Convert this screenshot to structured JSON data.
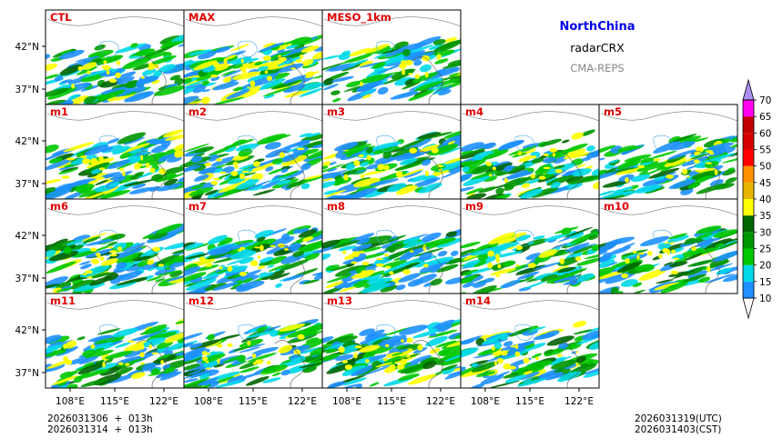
{
  "header": {
    "region": "NorthChina",
    "variable": "radarCRX",
    "system": "CMA-REPS"
  },
  "panels": [
    {
      "row": 0,
      "col": 0,
      "label": "CTL",
      "seed": 11,
      "density": 0.55
    },
    {
      "row": 0,
      "col": 1,
      "label": "MAX",
      "seed": 23,
      "density": 0.95
    },
    {
      "row": 0,
      "col": 2,
      "label": "MESO_1km",
      "seed": 37,
      "density": 0.45
    },
    {
      "row": 1,
      "col": 0,
      "label": "m1",
      "seed": 41,
      "density": 0.75
    },
    {
      "row": 1,
      "col": 1,
      "label": "m2",
      "seed": 53,
      "density": 0.6
    },
    {
      "row": 1,
      "col": 2,
      "label": "m3",
      "seed": 67,
      "density": 0.62
    },
    {
      "row": 1,
      "col": 3,
      "label": "m4",
      "seed": 71,
      "density": 0.55
    },
    {
      "row": 1,
      "col": 4,
      "label": "m5",
      "seed": 83,
      "density": 0.6
    },
    {
      "row": 2,
      "col": 0,
      "label": "m6",
      "seed": 97,
      "density": 0.65
    },
    {
      "row": 2,
      "col": 1,
      "label": "m7",
      "seed": 101,
      "density": 0.62
    },
    {
      "row": 2,
      "col": 2,
      "label": "m8",
      "seed": 113,
      "density": 0.6
    },
    {
      "row": 2,
      "col": 3,
      "label": "m9",
      "seed": 127,
      "density": 0.58
    },
    {
      "row": 2,
      "col": 4,
      "label": "m10",
      "seed": 131,
      "density": 0.6
    },
    {
      "row": 3,
      "col": 0,
      "label": "m11",
      "seed": 149,
      "density": 0.6
    },
    {
      "row": 3,
      "col": 1,
      "label": "m12",
      "seed": 157,
      "density": 0.62
    },
    {
      "row": 3,
      "col": 2,
      "label": "m13",
      "seed": 163,
      "density": 0.65
    },
    {
      "row": 3,
      "col": 3,
      "label": "m14",
      "seed": 173,
      "density": 0.6
    }
  ],
  "lat_ticks": [
    "42°N",
    "37°N"
  ],
  "lon_ticks": [
    "108°E",
    "115°E",
    "122°E"
  ],
  "colorbar": {
    "levels": [
      10,
      15,
      20,
      25,
      30,
      35,
      40,
      45,
      50,
      55,
      60,
      65,
      70
    ],
    "colors": [
      "#1e90ff",
      "#00d8e8",
      "#00c800",
      "#009600",
      "#006400",
      "#ffff00",
      "#e6b400",
      "#ff9000",
      "#ff0000",
      "#d60000",
      "#c00000",
      "#ff00f0",
      "#9600b4",
      "#ad90f0"
    ]
  },
  "footer": {
    "init_line1": "2026031306  +  013h",
    "init_line2": "2026031314  +  013h",
    "valid_utc": "2026031319(UTC)",
    "valid_cst": "2026031403(CST)"
  }
}
